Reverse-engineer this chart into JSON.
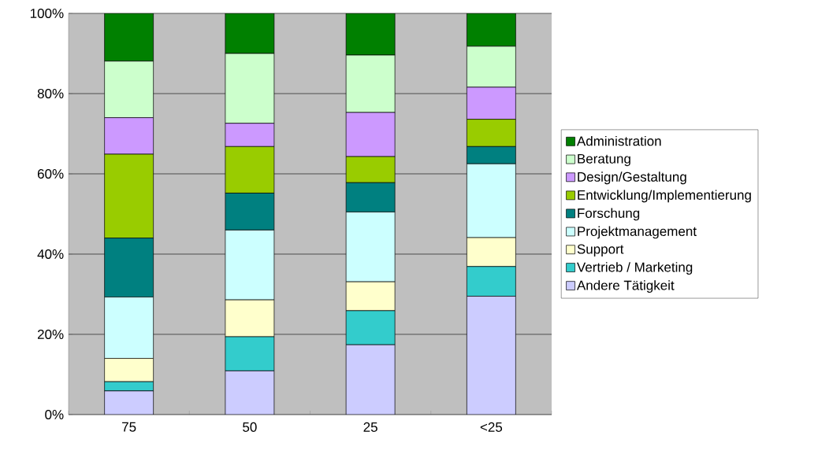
{
  "chart_data": {
    "type": "bar",
    "stacked": true,
    "categories": [
      "75",
      "50",
      "25",
      "<25"
    ],
    "series": [
      {
        "name": "Andere Tätigkeit",
        "color": "#ccccff",
        "values": [
          5.9,
          10.9,
          17.4,
          29.5
        ]
      },
      {
        "name": "Vertrieb / Marketing",
        "color": "#33cccc",
        "values": [
          2.3,
          8.5,
          8.5,
          7.4
        ]
      },
      {
        "name": "Support",
        "color": "#ffffcc",
        "values": [
          5.8,
          9.2,
          7.2,
          7.2
        ]
      },
      {
        "name": "Projektmanagement",
        "color": "#ccffff",
        "values": [
          15.3,
          17.4,
          17.4,
          18.4
        ]
      },
      {
        "name": "Forschung",
        "color": "#008080",
        "values": [
          14.7,
          9.2,
          7.3,
          4.3
        ]
      },
      {
        "name": "Entwicklung/Implementierung",
        "color": "#99cc00",
        "values": [
          20.9,
          11.6,
          6.5,
          6.8
        ]
      },
      {
        "name": "Design/Gestaltung",
        "color": "#cc99ff",
        "values": [
          9.1,
          5.8,
          11.0,
          8.0
        ]
      },
      {
        "name": "Beratung",
        "color": "#ccffcc",
        "values": [
          14.1,
          17.4,
          14.3,
          10.2
        ]
      },
      {
        "name": "Administration",
        "color": "#008000",
        "values": [
          11.9,
          10.0,
          10.4,
          8.2
        ]
      }
    ],
    "ylim": [
      0,
      100
    ],
    "yticks": [
      {
        "value": 0,
        "label": "0%"
      },
      {
        "value": 20,
        "label": "20%"
      },
      {
        "value": 40,
        "label": "40%"
      },
      {
        "value": 60,
        "label": "60%"
      },
      {
        "value": 80,
        "label": "80%"
      },
      {
        "value": 100,
        "label": "100%"
      }
    ],
    "grid": "y",
    "legend": "right"
  }
}
